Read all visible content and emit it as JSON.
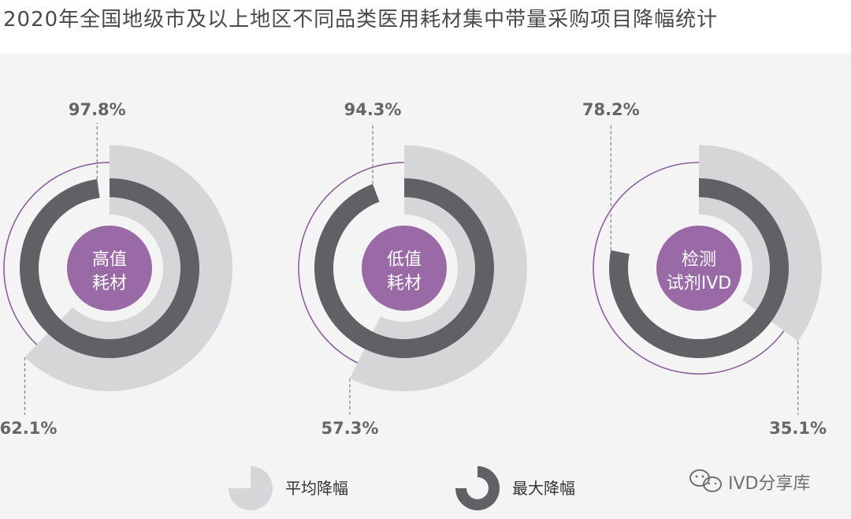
{
  "title": "2020年全国地级市及以上地区不同品类医用耗材集中带量采购项目降幅统计",
  "colors": {
    "avg": "#d6d6d8",
    "max": "#606065",
    "center": "#9a6aa6",
    "outline": "#8c5f9c",
    "leader": "#888888",
    "label": "#666669"
  },
  "chart_data": {
    "type": "radial-bar",
    "series_names": [
      "平均降幅",
      "最大降幅"
    ],
    "items": [
      {
        "category_line1": "高值",
        "category_line2": "耗材",
        "avg": 62.1,
        "max": 97.8,
        "avg_label": "62.1%",
        "max_label": "97.8%"
      },
      {
        "category_line1": "低值",
        "category_line2": "耗材",
        "avg": 57.3,
        "max": 94.3,
        "avg_label": "57.3%",
        "max_label": "94.3%"
      },
      {
        "category_line1": "检测",
        "category_line2": "试剂IVD",
        "avg": 35.1,
        "max": 78.2,
        "avg_label": "35.1%",
        "max_label": "78.2%"
      }
    ]
  },
  "legend": {
    "avg_label": "平均降幅",
    "max_label": "最大降幅"
  },
  "watermark": {
    "text": "IVD分享库",
    "icon": "wechat-icon"
  }
}
